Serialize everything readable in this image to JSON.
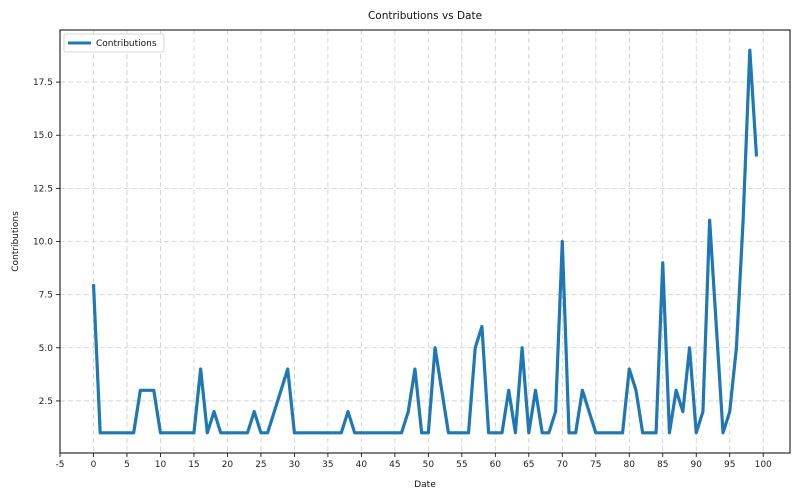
{
  "chart_data": {
    "type": "line",
    "title": "Contributions vs Date",
    "xlabel": "Date",
    "ylabel": "Contributions",
    "xlim": [
      -5,
      104
    ],
    "ylim": [
      0.05,
      19.95
    ],
    "x_ticks": [
      -5,
      0,
      5,
      10,
      15,
      20,
      25,
      30,
      35,
      40,
      45,
      50,
      55,
      60,
      65,
      70,
      75,
      80,
      85,
      90,
      95,
      100
    ],
    "y_ticks": [
      2.5,
      5.0,
      7.5,
      10.0,
      12.5,
      15.0,
      17.5
    ],
    "y_tick_labels": [
      "2.5",
      "5.0",
      "7.5",
      "10.0",
      "12.5",
      "15.0",
      "17.5"
    ],
    "grid": true,
    "legend_position": "top-left",
    "colors": {
      "line": "#1f77b4",
      "grid": "#cccccc",
      "axis": "#000000"
    },
    "series": [
      {
        "name": "Contributions",
        "x": [
          0,
          1,
          2,
          3,
          4,
          5,
          6,
          7,
          8,
          9,
          10,
          11,
          12,
          13,
          14,
          15,
          16,
          17,
          18,
          19,
          20,
          21,
          22,
          23,
          24,
          25,
          26,
          27,
          28,
          29,
          30,
          31,
          32,
          33,
          34,
          35,
          36,
          37,
          38,
          39,
          40,
          41,
          42,
          43,
          44,
          45,
          46,
          47,
          48,
          49,
          50,
          51,
          52,
          53,
          54,
          55,
          56,
          57,
          58,
          59,
          60,
          61,
          62,
          63,
          64,
          65,
          66,
          67,
          68,
          69,
          70,
          71,
          72,
          73,
          74,
          75,
          76,
          77,
          78,
          79,
          80,
          81,
          82,
          83,
          84,
          85,
          86,
          87,
          88,
          89,
          90,
          91,
          92,
          93,
          94,
          95,
          96,
          97,
          98,
          99
        ],
        "values": [
          8,
          1,
          1,
          1,
          1,
          1,
          1,
          3,
          3,
          3,
          1,
          1,
          1,
          1,
          1,
          1,
          4,
          1,
          2,
          1,
          1,
          1,
          1,
          1,
          2,
          1,
          1,
          2,
          3,
          4,
          1,
          1,
          1,
          1,
          1,
          1,
          1,
          1,
          2,
          1,
          1,
          1,
          1,
          1,
          1,
          1,
          1,
          2,
          4,
          1,
          1,
          5,
          3,
          1,
          1,
          1,
          1,
          5,
          6,
          1,
          1,
          1,
          3,
          1,
          5,
          1,
          3,
          1,
          1,
          2,
          10,
          1,
          1,
          3,
          2,
          1,
          1,
          1,
          1,
          1,
          4,
          3,
          1,
          1,
          1,
          9,
          1,
          3,
          2,
          5,
          1,
          2,
          11,
          6,
          1,
          2,
          5,
          11,
          19,
          14
        ]
      }
    ]
  }
}
